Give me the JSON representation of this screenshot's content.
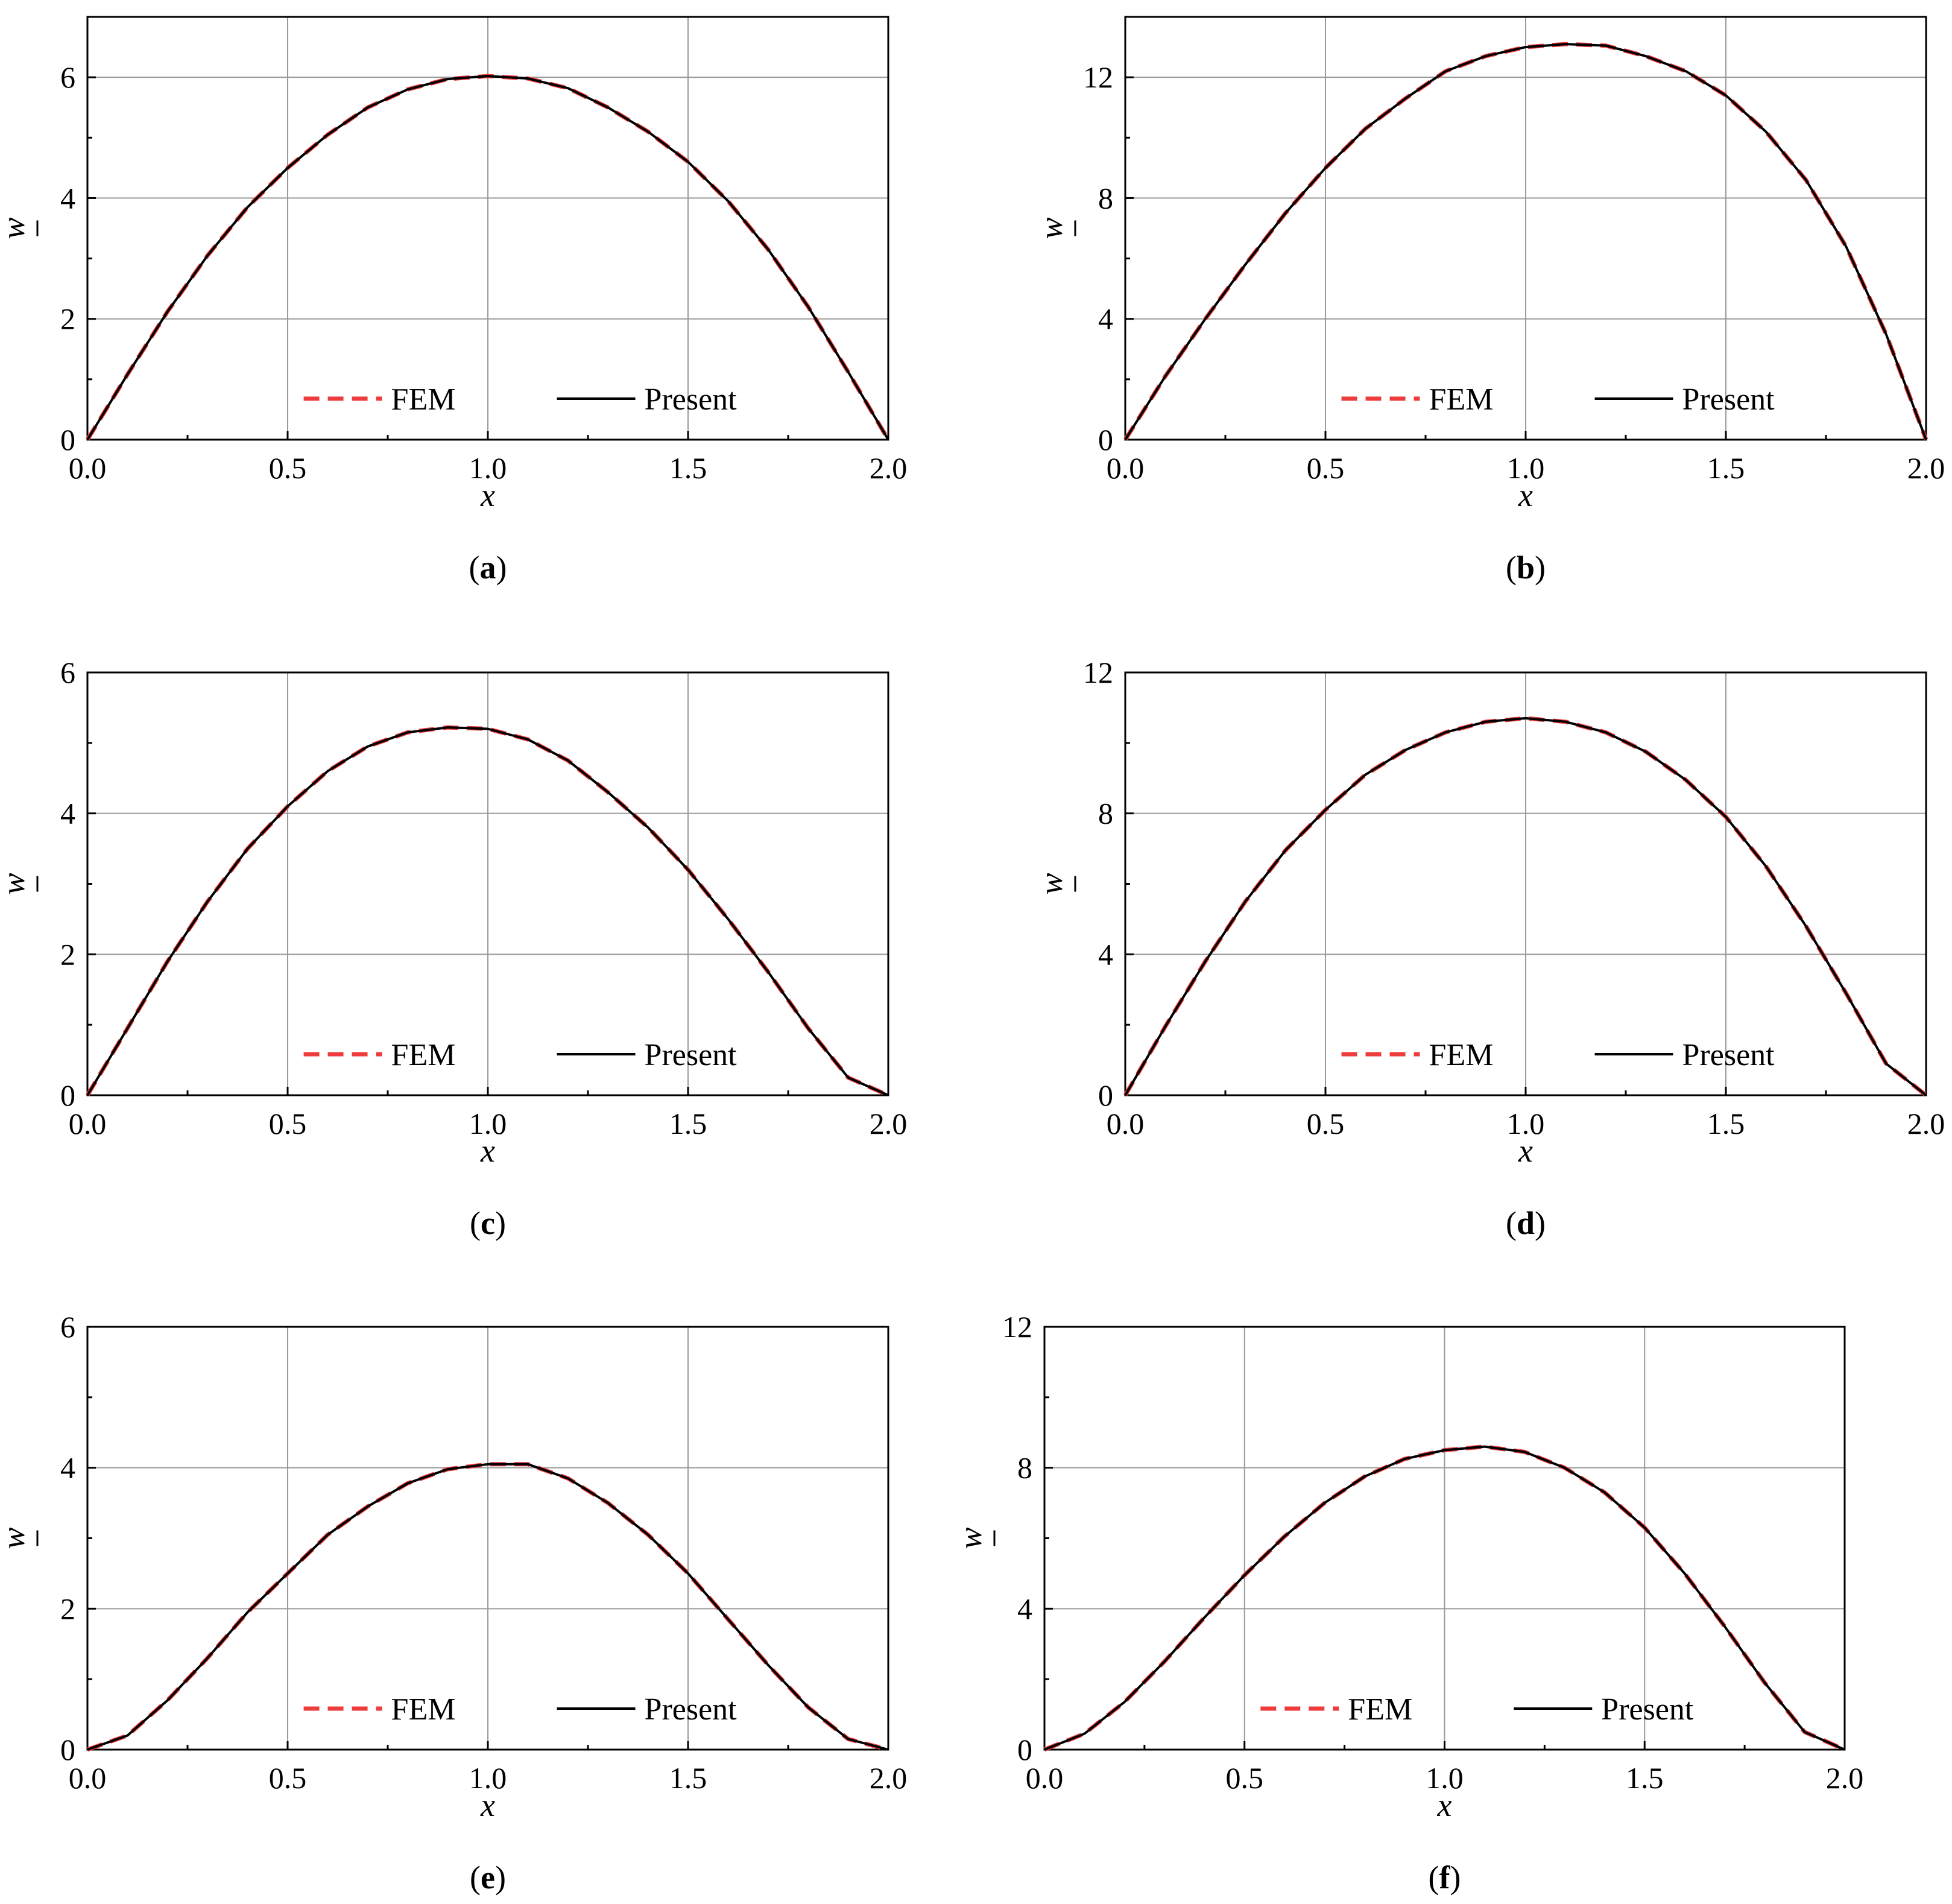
{
  "chart_data": [
    {
      "type": "line",
      "caption": "a",
      "xlabel": "x",
      "ylabel": "w",
      "xlim": [
        0,
        2
      ],
      "ylim": [
        0,
        7
      ],
      "xticks": [
        "0.0",
        "0.5",
        "1.0",
        "1.5",
        "2.0"
      ],
      "xtick_values": [
        0,
        0.5,
        1,
        1.5,
        2
      ],
      "yticks": [
        "0",
        "2",
        "4",
        "6"
      ],
      "ytick_values": [
        0,
        2,
        4,
        6
      ],
      "grid": true,
      "legend": "bottom-center",
      "series": [
        {
          "name": "FEM",
          "color": "#ee3b3b",
          "style": "dashed",
          "x": [
            0,
            0.1,
            0.2,
            0.3,
            0.4,
            0.5,
            0.6,
            0.7,
            0.8,
            0.9,
            1.0,
            1.1,
            1.2,
            1.3,
            1.4,
            1.5,
            1.6,
            1.7,
            1.8,
            1.9,
            2.0
          ],
          "y": [
            0,
            1.08,
            2.12,
            3.05,
            3.85,
            4.5,
            5.05,
            5.5,
            5.8,
            5.97,
            6.02,
            5.98,
            5.82,
            5.5,
            5.1,
            4.6,
            3.95,
            3.15,
            2.2,
            1.12,
            0
          ]
        },
        {
          "name": "Present",
          "color": "#000000",
          "style": "solid",
          "x": [
            0,
            0.1,
            0.2,
            0.3,
            0.4,
            0.5,
            0.6,
            0.7,
            0.8,
            0.9,
            1.0,
            1.1,
            1.2,
            1.3,
            1.4,
            1.5,
            1.6,
            1.7,
            1.8,
            1.9,
            2.0
          ],
          "y": [
            0,
            1.08,
            2.12,
            3.05,
            3.85,
            4.5,
            5.05,
            5.5,
            5.8,
            5.97,
            6.02,
            5.98,
            5.82,
            5.5,
            5.1,
            4.6,
            3.95,
            3.15,
            2.2,
            1.12,
            0
          ]
        }
      ]
    },
    {
      "type": "line",
      "caption": "b",
      "xlabel": "x",
      "ylabel": "w",
      "xlim": [
        0,
        2
      ],
      "ylim": [
        0,
        14
      ],
      "xticks": [
        "0.0",
        "0.5",
        "1.0",
        "1.5",
        "2.0"
      ],
      "xtick_values": [
        0,
        0.5,
        1,
        1.5,
        2
      ],
      "yticks": [
        "0",
        "4",
        "8",
        "12"
      ],
      "ytick_values": [
        0,
        4,
        8,
        12
      ],
      "grid": true,
      "legend": "bottom-center",
      "series": [
        {
          "name": "FEM",
          "color": "#ee3b3b",
          "style": "dashed",
          "x": [
            0,
            0.1,
            0.2,
            0.3,
            0.4,
            0.5,
            0.6,
            0.7,
            0.8,
            0.9,
            1.0,
            1.1,
            1.2,
            1.3,
            1.4,
            1.5,
            1.6,
            1.7,
            1.8,
            1.9,
            2.0
          ],
          "y": [
            0,
            2.1,
            4.0,
            5.8,
            7.5,
            9.0,
            10.3,
            11.3,
            12.2,
            12.7,
            13.0,
            13.1,
            13.05,
            12.7,
            12.2,
            11.4,
            10.2,
            8.6,
            6.4,
            3.5,
            0
          ]
        },
        {
          "name": "Present",
          "color": "#000000",
          "style": "solid",
          "x": [
            0,
            0.1,
            0.2,
            0.3,
            0.4,
            0.5,
            0.6,
            0.7,
            0.8,
            0.9,
            1.0,
            1.1,
            1.2,
            1.3,
            1.4,
            1.5,
            1.6,
            1.7,
            1.8,
            1.9,
            2.0
          ],
          "y": [
            0,
            2.1,
            4.0,
            5.8,
            7.5,
            9.0,
            10.3,
            11.3,
            12.2,
            12.7,
            13.0,
            13.1,
            13.05,
            12.7,
            12.2,
            11.4,
            10.2,
            8.6,
            6.4,
            3.5,
            0
          ]
        }
      ]
    },
    {
      "type": "line",
      "caption": "c",
      "xlabel": "x",
      "ylabel": "w",
      "xlim": [
        0,
        2
      ],
      "ylim": [
        0,
        6
      ],
      "xticks": [
        "0.0",
        "0.5",
        "1.0",
        "1.5",
        "2.0"
      ],
      "xtick_values": [
        0,
        0.5,
        1,
        1.5,
        2
      ],
      "yticks": [
        "0",
        "2",
        "4",
        "6"
      ],
      "ytick_values": [
        0,
        2,
        4,
        6
      ],
      "grid": true,
      "legend": "bottom-center",
      "series": [
        {
          "name": "FEM",
          "color": "#ee3b3b",
          "style": "dashed",
          "x": [
            0,
            0.1,
            0.2,
            0.3,
            0.4,
            0.5,
            0.6,
            0.7,
            0.8,
            0.9,
            1.0,
            1.1,
            1.2,
            1.3,
            1.4,
            1.5,
            1.6,
            1.7,
            1.8,
            1.9,
            2.0
          ],
          "y": [
            0,
            0.95,
            1.9,
            2.75,
            3.5,
            4.1,
            4.6,
            4.95,
            5.15,
            5.22,
            5.2,
            5.05,
            4.75,
            4.3,
            3.8,
            3.2,
            2.5,
            1.75,
            0.95,
            0.25,
            0
          ]
        },
        {
          "name": "Present",
          "color": "#000000",
          "style": "solid",
          "x": [
            0,
            0.1,
            0.2,
            0.3,
            0.4,
            0.5,
            0.6,
            0.7,
            0.8,
            0.9,
            1.0,
            1.1,
            1.2,
            1.3,
            1.4,
            1.5,
            1.6,
            1.7,
            1.8,
            1.9,
            2.0
          ],
          "y": [
            0,
            0.95,
            1.9,
            2.75,
            3.5,
            4.1,
            4.6,
            4.95,
            5.15,
            5.22,
            5.2,
            5.05,
            4.75,
            4.3,
            3.8,
            3.2,
            2.5,
            1.75,
            0.95,
            0.25,
            0
          ]
        }
      ]
    },
    {
      "type": "line",
      "caption": "d",
      "xlabel": "x",
      "ylabel": "w",
      "xlim": [
        0,
        2
      ],
      "ylim": [
        0,
        12
      ],
      "xticks": [
        "0.0",
        "0.5",
        "1.0",
        "1.5",
        "2.0"
      ],
      "xtick_values": [
        0,
        0.5,
        1,
        1.5,
        2
      ],
      "yticks": [
        "0",
        "4",
        "8",
        "12"
      ],
      "ytick_values": [
        0,
        4,
        8,
        12
      ],
      "grid": true,
      "legend": "bottom-center",
      "series": [
        {
          "name": "FEM",
          "color": "#ee3b3b",
          "style": "dashed",
          "x": [
            0,
            0.1,
            0.2,
            0.3,
            0.4,
            0.5,
            0.6,
            0.7,
            0.8,
            0.9,
            1.0,
            1.1,
            1.2,
            1.3,
            1.4,
            1.5,
            1.6,
            1.7,
            1.8,
            1.9,
            2.0
          ],
          "y": [
            0,
            1.95,
            3.8,
            5.5,
            6.95,
            8.1,
            9.1,
            9.8,
            10.3,
            10.6,
            10.7,
            10.6,
            10.3,
            9.75,
            8.95,
            7.9,
            6.5,
            4.8,
            2.9,
            0.9,
            0
          ]
        },
        {
          "name": "Present",
          "color": "#000000",
          "style": "solid",
          "x": [
            0,
            0.1,
            0.2,
            0.3,
            0.4,
            0.5,
            0.6,
            0.7,
            0.8,
            0.9,
            1.0,
            1.1,
            1.2,
            1.3,
            1.4,
            1.5,
            1.6,
            1.7,
            1.8,
            1.9,
            2.0
          ],
          "y": [
            0,
            1.95,
            3.8,
            5.5,
            6.95,
            8.1,
            9.1,
            9.8,
            10.3,
            10.6,
            10.7,
            10.6,
            10.3,
            9.75,
            8.95,
            7.9,
            6.5,
            4.8,
            2.9,
            0.9,
            0
          ]
        }
      ]
    },
    {
      "type": "line",
      "caption": "e",
      "xlabel": "x",
      "ylabel": "w",
      "xlim": [
        0,
        2
      ],
      "ylim": [
        0,
        6
      ],
      "xticks": [
        "0.0",
        "0.5",
        "1.0",
        "1.5",
        "2.0"
      ],
      "xtick_values": [
        0,
        0.5,
        1,
        1.5,
        2
      ],
      "yticks": [
        "0",
        "2",
        "4",
        "6"
      ],
      "ytick_values": [
        0,
        2,
        4,
        6
      ],
      "grid": true,
      "legend": "bottom-center",
      "series": [
        {
          "name": "FEM",
          "color": "#ee3b3b",
          "style": "dashed",
          "x": [
            0,
            0.1,
            0.2,
            0.3,
            0.4,
            0.5,
            0.6,
            0.7,
            0.8,
            0.9,
            1.0,
            1.1,
            1.2,
            1.3,
            1.4,
            1.5,
            1.6,
            1.7,
            1.8,
            1.9,
            2.0
          ],
          "y": [
            0,
            0.2,
            0.7,
            1.3,
            1.95,
            2.5,
            3.05,
            3.45,
            3.78,
            3.98,
            4.05,
            4.05,
            3.85,
            3.5,
            3.05,
            2.5,
            1.85,
            1.2,
            0.6,
            0.15,
            0
          ]
        },
        {
          "name": "Present",
          "color": "#000000",
          "style": "solid",
          "x": [
            0,
            0.1,
            0.2,
            0.3,
            0.4,
            0.5,
            0.6,
            0.7,
            0.8,
            0.9,
            1.0,
            1.1,
            1.2,
            1.3,
            1.4,
            1.5,
            1.6,
            1.7,
            1.8,
            1.9,
            2.0
          ],
          "y": [
            0,
            0.2,
            0.7,
            1.3,
            1.95,
            2.5,
            3.05,
            3.45,
            3.78,
            3.98,
            4.05,
            4.05,
            3.85,
            3.5,
            3.05,
            2.5,
            1.85,
            1.2,
            0.6,
            0.15,
            0
          ]
        }
      ]
    },
    {
      "type": "line",
      "caption": "f",
      "xlabel": "x",
      "ylabel": "w",
      "xlim": [
        0,
        2
      ],
      "ylim": [
        0,
        12
      ],
      "xticks": [
        "0.0",
        "0.5",
        "1.0",
        "1.5",
        "2.0"
      ],
      "xtick_values": [
        0,
        0.5,
        1,
        1.5,
        2
      ],
      "yticks": [
        "0",
        "4",
        "8",
        "12"
      ],
      "ytick_values": [
        0,
        4,
        8,
        12
      ],
      "grid": true,
      "legend": "bottom-center",
      "series": [
        {
          "name": "FEM",
          "color": "#ee3b3b",
          "style": "dashed",
          "x": [
            0,
            0.1,
            0.2,
            0.3,
            0.4,
            0.5,
            0.6,
            0.7,
            0.8,
            0.9,
            1.0,
            1.1,
            1.2,
            1.3,
            1.4,
            1.5,
            1.6,
            1.7,
            1.8,
            1.9,
            2.0
          ],
          "y": [
            0,
            0.45,
            1.35,
            2.5,
            3.75,
            4.95,
            6.05,
            7.0,
            7.75,
            8.25,
            8.5,
            8.6,
            8.45,
            8.0,
            7.3,
            6.3,
            5.0,
            3.5,
            1.9,
            0.5,
            0
          ]
        },
        {
          "name": "Present",
          "color": "#000000",
          "style": "solid",
          "x": [
            0,
            0.1,
            0.2,
            0.3,
            0.4,
            0.5,
            0.6,
            0.7,
            0.8,
            0.9,
            1.0,
            1.1,
            1.2,
            1.3,
            1.4,
            1.5,
            1.6,
            1.7,
            1.8,
            1.9,
            2.0
          ],
          "y": [
            0,
            0.45,
            1.35,
            2.5,
            3.75,
            4.95,
            6.05,
            7.0,
            7.75,
            8.25,
            8.5,
            8.6,
            8.45,
            8.0,
            7.3,
            6.3,
            5.0,
            3.5,
            1.9,
            0.5,
            0
          ]
        }
      ]
    }
  ]
}
